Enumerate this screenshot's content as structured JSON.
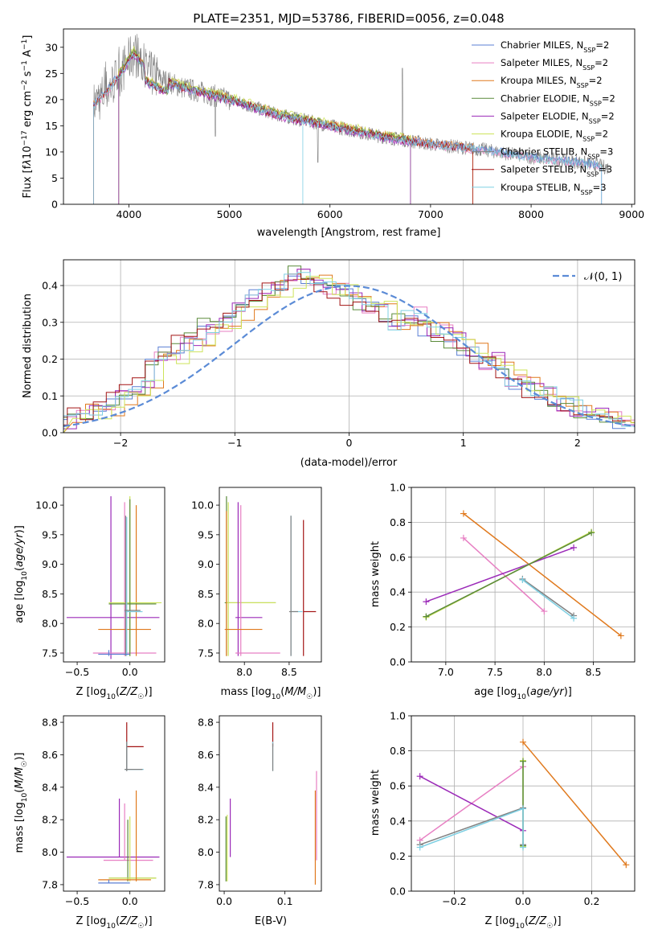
{
  "colors": [
    "#5b7fd4",
    "#e77fc3",
    "#e0791d",
    "#5a8a3a",
    "#9b2ab8",
    "#cde35a",
    "#808080",
    "#a31414",
    "#7fd0e3"
  ],
  "chart_data": [
    {
      "type": "line",
      "title": "PLATE=2351, MJD=53786, FIBERID=0056, z=0.048",
      "xlabel": "wavelength [Angstrom, rest frame]",
      "ylabel": "Flux [fλ10^-17 erg cm^-2 s^-1 A^-1]",
      "xlim": [
        3350,
        9030
      ],
      "ylim": [
        0,
        33.5
      ],
      "xticks": [
        4000,
        5000,
        6000,
        7000,
        8000,
        9000
      ],
      "yticks": [
        0,
        5,
        10,
        15,
        20,
        25,
        30
      ],
      "grid": false,
      "legend_position": "top-right",
      "series": [
        {
          "name": "Chabrier MILES, N_SSP=2"
        },
        {
          "name": "Salpeter MILES, N_SSP=2"
        },
        {
          "name": "Kroupa MILES, N_SSP=2"
        },
        {
          "name": "Chabrier ELODIE, N_SSP=2"
        },
        {
          "name": "Salpeter ELODIE, N_SSP=2"
        },
        {
          "name": "Kroupa ELODIE, N_SSP=2"
        },
        {
          "name": "Chabrier STELIB, N_SSP=3"
        },
        {
          "name": "Salpeter STELIB, N_SSP=3"
        },
        {
          "name": "Kroupa STELIB, N_SSP=3"
        }
      ],
      "continuum": {
        "x": [
          3650,
          3800,
          3950,
          4050,
          4200,
          4500,
          4800,
          5000,
          5500,
          6000,
          6500,
          7000,
          7500,
          8000,
          8500,
          8770
        ],
        "y": [
          19,
          22,
          26,
          29,
          25,
          22.5,
          21,
          20,
          17,
          15,
          13,
          11.5,
          10.5,
          9,
          8,
          7
        ]
      }
    },
    {
      "type": "line",
      "xlabel": "(data-model)/error",
      "ylabel": "Normed distribution",
      "xlim": [
        -2.5,
        2.5
      ],
      "ylim": [
        0,
        0.47
      ],
      "xticks": [
        -2,
        -1,
        0,
        1,
        2
      ],
      "yticks": [
        0.0,
        0.1,
        0.2,
        0.3,
        0.4
      ],
      "grid": true,
      "legend_position": "top-right",
      "legend_label": "𝒩(0, 1)",
      "histogram_base": [
        0.03,
        0.065,
        0.055,
        0.07,
        0.1,
        0.11,
        0.125,
        0.195,
        0.21,
        0.24,
        0.26,
        0.29,
        0.3,
        0.33,
        0.35,
        0.37,
        0.39,
        0.41,
        0.43,
        0.41,
        0.4,
        0.39,
        0.37,
        0.35,
        0.34,
        0.3,
        0.31,
        0.32,
        0.28,
        0.27,
        0.25,
        0.22,
        0.19,
        0.2,
        0.15,
        0.13,
        0.12,
        0.1,
        0.08,
        0.07,
        0.06,
        0.05,
        0.04,
        0.03
      ],
      "histogram_range": [
        -2.5,
        2.5
      ]
    },
    {
      "type": "scatter",
      "xlabel": "Z [log10(Z/Z☉)]",
      "ylabel": "age  [log10(age/yr)]",
      "xlim": [
        -0.63,
        0.33
      ],
      "ylim": [
        7.35,
        10.3
      ],
      "xticks": [
        -0.5,
        0.0
      ],
      "yticks": [
        7.5,
        8.0,
        8.5,
        9.0,
        9.5,
        10.0
      ],
      "grid": false
    },
    {
      "type": "scatter",
      "xlabel": "mass [log10(M/M☉)]",
      "ylabel": "",
      "xlim": [
        7.72,
        8.86
      ],
      "ylim": [
        7.35,
        10.3
      ],
      "xticks": [
        8.0,
        8.5
      ],
      "yticks": [
        7.5,
        8.0,
        8.5,
        9.0,
        9.5,
        10.0
      ],
      "grid": false
    },
    {
      "type": "line",
      "xlabel": "age  [log10(age/yr)]",
      "ylabel": "mass weight",
      "xlim": [
        6.65,
        8.92
      ],
      "ylim": [
        0,
        1.0
      ],
      "xticks": [
        7.0,
        7.5,
        8.0,
        8.5
      ],
      "yticks": [
        0.0,
        0.2,
        0.4,
        0.6,
        0.8,
        1.0
      ],
      "grid": true,
      "series": [
        {
          "color": "#e0791d",
          "x": [
            7.18,
            8.78
          ],
          "y": [
            0.85,
            0.15
          ]
        },
        {
          "color": "#e77fc3",
          "x": [
            7.18,
            8.0
          ],
          "y": [
            0.71,
            0.29
          ]
        },
        {
          "color": "#9b2ab8",
          "x": [
            6.8,
            8.3
          ],
          "y": [
            0.345,
            0.655
          ]
        },
        {
          "color": "#cde35a",
          "x": [
            6.8,
            8.48
          ],
          "y": [
            0.255,
            0.745
          ]
        },
        {
          "color": "#5a8a3a",
          "x": [
            6.8,
            8.48
          ],
          "y": [
            0.26,
            0.74
          ]
        },
        {
          "color": "#808080",
          "x": [
            7.78,
            8.3
          ],
          "y": [
            0.475,
            0.265
          ]
        },
        {
          "color": "#7fd0e3",
          "x": [
            7.78,
            8.3
          ],
          "y": [
            0.47,
            0.25
          ]
        }
      ]
    },
    {
      "type": "scatter",
      "xlabel": "Z [log10(Z/Z☉)]",
      "ylabel": "mass [log10(M/M☉)]",
      "xlim": [
        -0.63,
        0.33
      ],
      "ylim": [
        7.76,
        8.84
      ],
      "xticks": [
        -0.5,
        0.0
      ],
      "yticks": [
        7.8,
        8.0,
        8.2,
        8.4,
        8.6,
        8.8
      ],
      "grid": false
    },
    {
      "type": "scatter",
      "xlabel": "E(B-V)",
      "ylabel": "",
      "xlim": [
        -0.008,
        0.16
      ],
      "ylim": [
        7.76,
        8.84
      ],
      "xticks": [
        0.0,
        0.1
      ],
      "yticks": [
        7.8,
        8.0,
        8.2,
        8.4,
        8.6,
        8.8
      ],
      "grid": false
    },
    {
      "type": "line",
      "xlabel": "Z [log10(Z/Z☉)]",
      "ylabel": "mass weight",
      "xlim": [
        -0.325,
        0.325
      ],
      "ylim": [
        0,
        1.0
      ],
      "xticks": [
        -0.2,
        0.0,
        0.2
      ],
      "yticks": [
        0.0,
        0.2,
        0.4,
        0.6,
        0.8,
        1.0
      ],
      "grid": true,
      "series": [
        {
          "color": "#e0791d",
          "x": [
            0.0,
            0.3
          ],
          "y": [
            0.85,
            0.15
          ]
        },
        {
          "color": "#e77fc3",
          "x": [
            -0.3,
            0.0
          ],
          "y": [
            0.29,
            0.71
          ]
        },
        {
          "color": "#9b2ab8",
          "x": [
            -0.3,
            0.0
          ],
          "y": [
            0.655,
            0.345
          ]
        },
        {
          "color": "#cde35a",
          "x": [
            0.0,
            0.0
          ],
          "y": [
            0.255,
            0.745
          ]
        },
        {
          "color": "#5a8a3a",
          "x": [
            0.0,
            0.0
          ],
          "y": [
            0.26,
            0.74
          ]
        },
        {
          "color": "#808080",
          "x": [
            -0.3,
            0.0,
            0.0
          ],
          "y": [
            0.265,
            0.475,
            0.265
          ]
        },
        {
          "color": "#7fd0e3",
          "x": [
            -0.3,
            0.0,
            0.0
          ],
          "y": [
            0.25,
            0.47,
            0.25
          ]
        }
      ]
    }
  ]
}
